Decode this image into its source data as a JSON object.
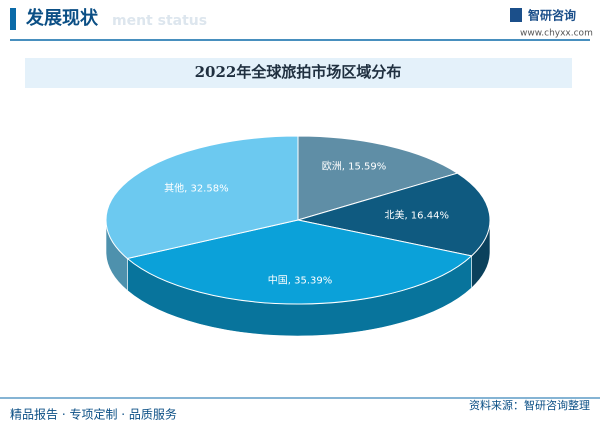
{
  "header": {
    "title": "发展现状",
    "subtitle": "ment status",
    "brand": "智研咨询",
    "url": "www.chyxx.com"
  },
  "chart_data": {
    "type": "pie3d",
    "title": "2022年全球旅拍市场区域分布",
    "values": [
      15.59,
      16.44,
      35.39,
      32.58
    ],
    "value_labels": [
      "欧洲, 15.59%",
      "北美, 16.44%",
      "中国, 35.39%",
      "其他, 32.58%"
    ],
    "colors": [
      "#5f8ea6",
      "#0f5a80",
      "#0ba1d9",
      "#6cc9f0"
    ]
  },
  "footer": {
    "left": "精品报告 · 专项定制 · 品质服务",
    "right": "资料来源：智研咨询整理"
  }
}
